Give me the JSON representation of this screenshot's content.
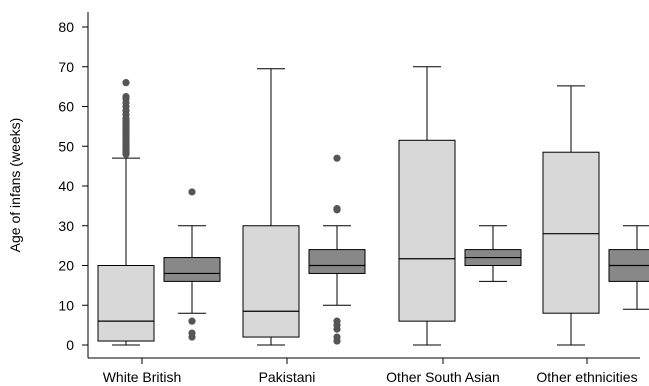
{
  "chart_data": {
    "type": "boxplot",
    "title": "",
    "xlabel": "",
    "ylabel": "Age of infans (weeks)",
    "ylim": [
      0,
      80
    ],
    "yticks": [
      0,
      10,
      20,
      30,
      40,
      50,
      60,
      70,
      80
    ],
    "grid": false,
    "legend": "none",
    "categories": [
      "White British",
      "Pakistani",
      "Other South Asian",
      "Other ethnicities"
    ],
    "series": [
      {
        "color": "#d8d8d8",
        "boxes": [
          {
            "whisker_low": 0,
            "q1": 1,
            "median": 6,
            "q3": 20,
            "whisker_high": 47,
            "outliers": [
              48,
              48.5,
              49,
              49.5,
              50,
              50.5,
              51,
              51.5,
              52,
              52.5,
              53,
              53.5,
              54,
              54.5,
              55,
              55.5,
              56,
              56.5,
              57,
              58,
              59,
              60,
              61,
              62,
              62.5,
              66
            ]
          },
          {
            "whisker_low": 0,
            "q1": 2,
            "median": 8.5,
            "q3": 30,
            "whisker_high": 69.5,
            "outliers": []
          },
          {
            "whisker_low": 0,
            "q1": 6,
            "median": 21.7,
            "q3": 51.5,
            "whisker_high": 70,
            "outliers": []
          },
          {
            "whisker_low": 0,
            "q1": 8,
            "median": 28,
            "q3": 48.5,
            "whisker_high": 65.2,
            "outliers": []
          }
        ]
      },
      {
        "color": "#888888",
        "boxes": [
          {
            "whisker_low": 8,
            "q1": 16,
            "median": 18,
            "q3": 22,
            "whisker_high": 30,
            "outliers": [
              2,
              3,
              6,
              38.5
            ]
          },
          {
            "whisker_low": 10,
            "q1": 18,
            "median": 20,
            "q3": 24,
            "whisker_high": 30,
            "outliers": [
              1,
              2,
              4,
              5,
              6,
              34,
              34.3,
              47
            ]
          },
          {
            "whisker_low": 16,
            "q1": 20,
            "median": 22,
            "q3": 24,
            "whisker_high": 30,
            "outliers": []
          },
          {
            "whisker_low": 9,
            "q1": 16,
            "median": 20,
            "q3": 24,
            "whisker_high": 30,
            "outliers": []
          }
        ]
      }
    ]
  }
}
